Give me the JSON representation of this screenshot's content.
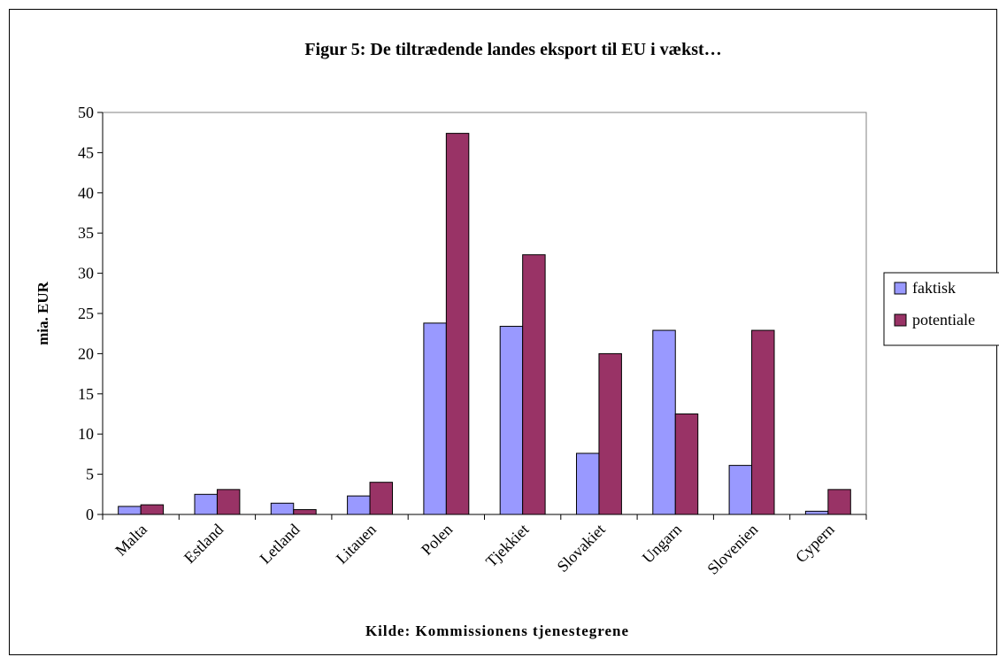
{
  "chart_data": {
    "type": "bar",
    "title": "Figur 5: De tiltrædende landes eksport til EU i vækst…",
    "source": "Kilde: Kommissionens tjenestegrene",
    "xlabel": "",
    "ylabel": "mia. EUR",
    "ylim": [
      0,
      50
    ],
    "yticks": [
      0,
      5,
      10,
      15,
      20,
      25,
      30,
      35,
      40,
      45,
      50
    ],
    "grid": false,
    "legend_position": "right",
    "categories": [
      "Malta",
      "Estland",
      "Letland",
      "Litauen",
      "Polen",
      "Tjekkiet",
      "Slovakiet",
      "Ungarn",
      "Slovenien",
      "Cypern"
    ],
    "series": [
      {
        "name": "faktisk",
        "color": "#9999ff",
        "values": [
          1.0,
          2.5,
          1.4,
          2.3,
          23.8,
          23.4,
          7.6,
          22.9,
          6.1,
          0.4
        ]
      },
      {
        "name": "potentiale",
        "color": "#993366",
        "values": [
          1.2,
          3.1,
          0.6,
          4.0,
          47.4,
          32.3,
          20.0,
          12.5,
          22.9,
          3.1
        ]
      }
    ]
  }
}
